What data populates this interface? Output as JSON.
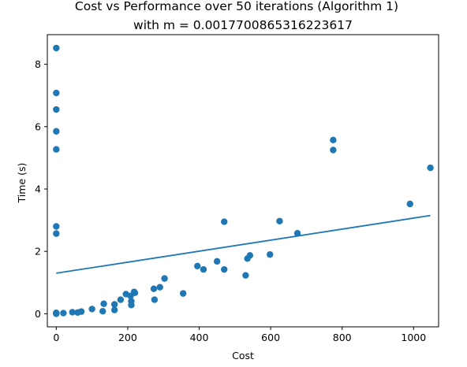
{
  "chart_data": {
    "type": "scatter",
    "title": "Cost vs Performance over 50 iterations (Algorithm 1)",
    "subtitle": "with m = 0.0017700865316223617",
    "xlabel": "Cost",
    "ylabel": "Time (s)",
    "xlim": [
      -25,
      1070
    ],
    "ylim": [
      -0.42,
      8.95
    ],
    "xticks": [
      0,
      200,
      400,
      600,
      800,
      1000
    ],
    "yticks": [
      0,
      2,
      4,
      6,
      8
    ],
    "xtick_labels": [
      "0",
      "200",
      "400",
      "600",
      "800",
      "1000"
    ],
    "ytick_labels": [
      "0",
      "2",
      "4",
      "6",
      "8"
    ],
    "grid": false,
    "colors": {
      "points": "#1f77b4",
      "line": "#1f77b4"
    },
    "series": [
      {
        "kind": "points",
        "x": [
          0,
          0,
          0,
          0,
          0,
          0,
          0,
          0,
          0,
          0,
          20,
          45,
          60,
          70,
          100,
          130,
          133,
          163,
          163,
          180,
          195,
          208,
          210,
          210,
          218,
          220,
          273,
          275,
          290,
          303,
          355,
          395,
          412,
          450,
          470,
          470,
          530,
          535,
          542,
          598,
          625,
          675,
          775,
          775,
          990,
          1047
        ],
        "y": [
          8.52,
          7.08,
          6.55,
          5.85,
          5.27,
          2.8,
          2.57,
          0.02,
          0.0,
          0.03,
          0.02,
          0.05,
          0.04,
          0.07,
          0.15,
          0.08,
          0.32,
          0.3,
          0.12,
          0.45,
          0.63,
          0.57,
          0.4,
          0.28,
          0.7,
          0.67,
          0.8,
          0.45,
          0.85,
          1.13,
          0.65,
          1.53,
          1.42,
          1.68,
          2.95,
          1.42,
          1.23,
          1.77,
          1.87,
          1.9,
          2.97,
          2.58,
          5.57,
          5.25,
          3.52,
          4.68
        ]
      },
      {
        "kind": "line",
        "x": [
          0,
          1047
        ],
        "y": [
          1.3,
          3.15
        ]
      }
    ]
  }
}
